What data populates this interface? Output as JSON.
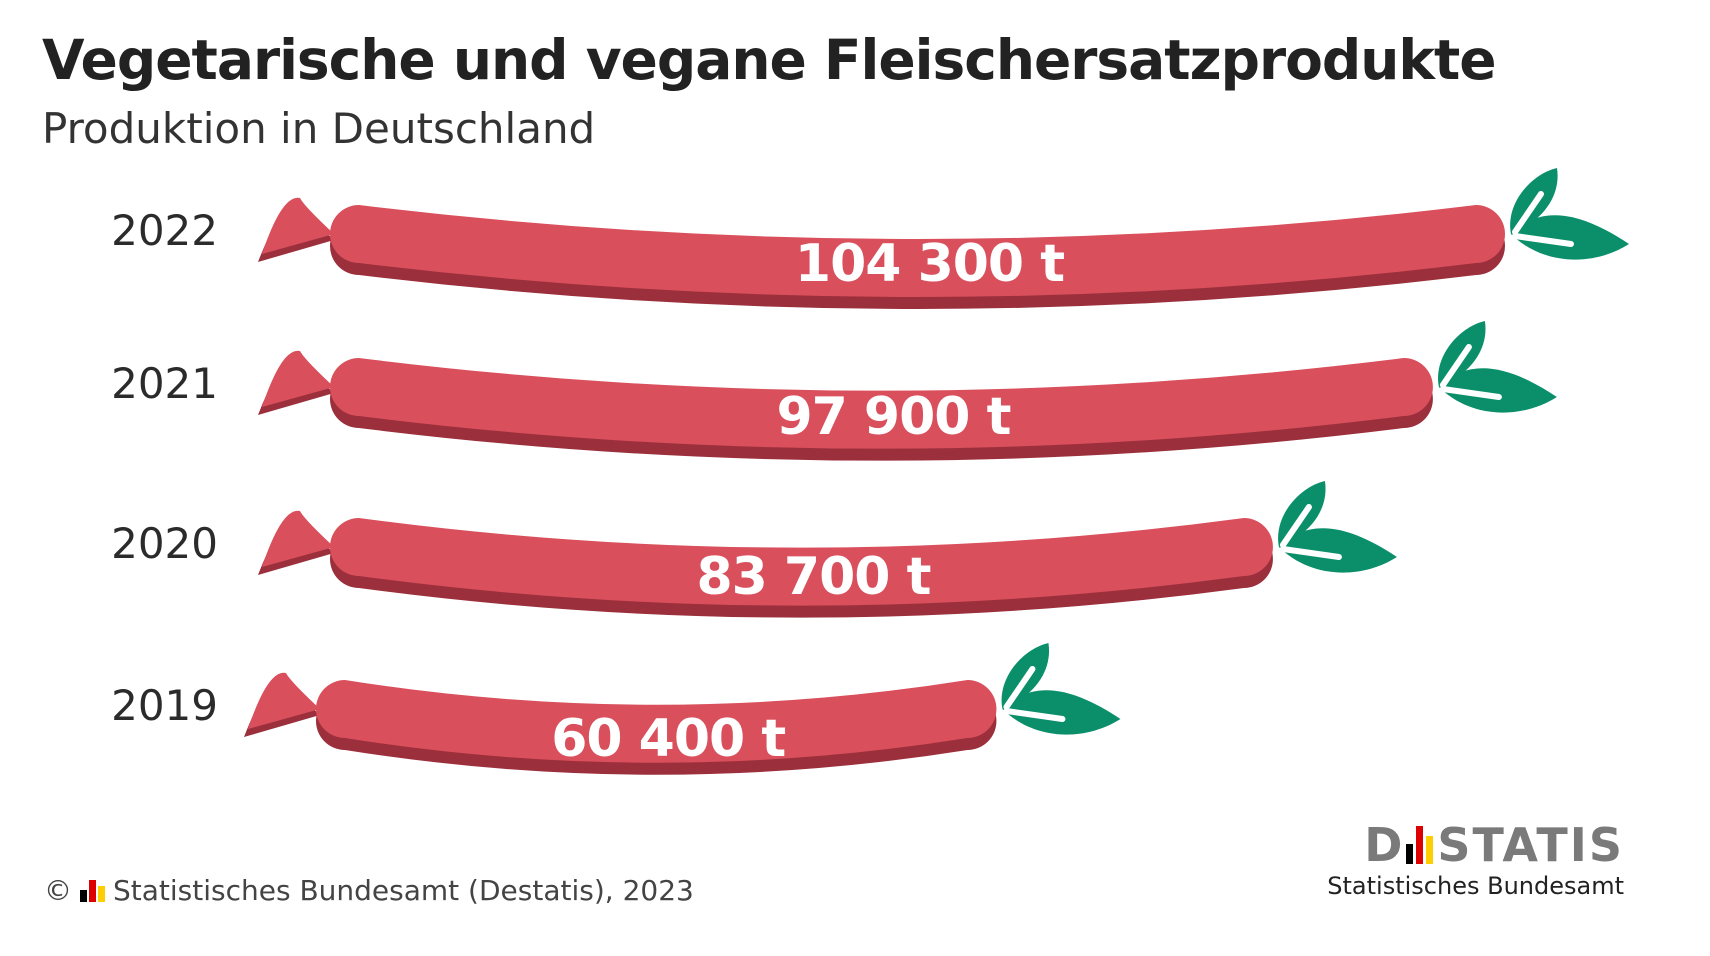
{
  "chart_data": {
    "type": "bar",
    "title": "Vegetarische und vegane Fleischersatzprodukte",
    "subtitle": "Produktion in Deutschland",
    "categories": [
      "2022",
      "2021",
      "2020",
      "2019"
    ],
    "values": [
      104300,
      97900,
      83700,
      60400
    ],
    "value_labels": [
      "104 300 t",
      "97 900 t",
      "83 700 t",
      "60 400 t"
    ],
    "unit": "t",
    "orientation": "horizontal",
    "bar_shape": "sausage",
    "colors": {
      "sausage": "#d94f5c",
      "sausage_shadow": "#9c2f3c",
      "leaf": "#0b8f6a",
      "text": "#2b2b2b",
      "logo": "#7a7a7a"
    }
  },
  "footer": {
    "copyright": "©",
    "source": "Statistisches Bundesamt (Destatis), 2023"
  },
  "logo": {
    "word_left": "D",
    "word_right": "STATIS",
    "subtitle": "Statistisches Bundesamt",
    "mark_colors": [
      "#000000",
      "#dd0000",
      "#ffce00"
    ]
  }
}
